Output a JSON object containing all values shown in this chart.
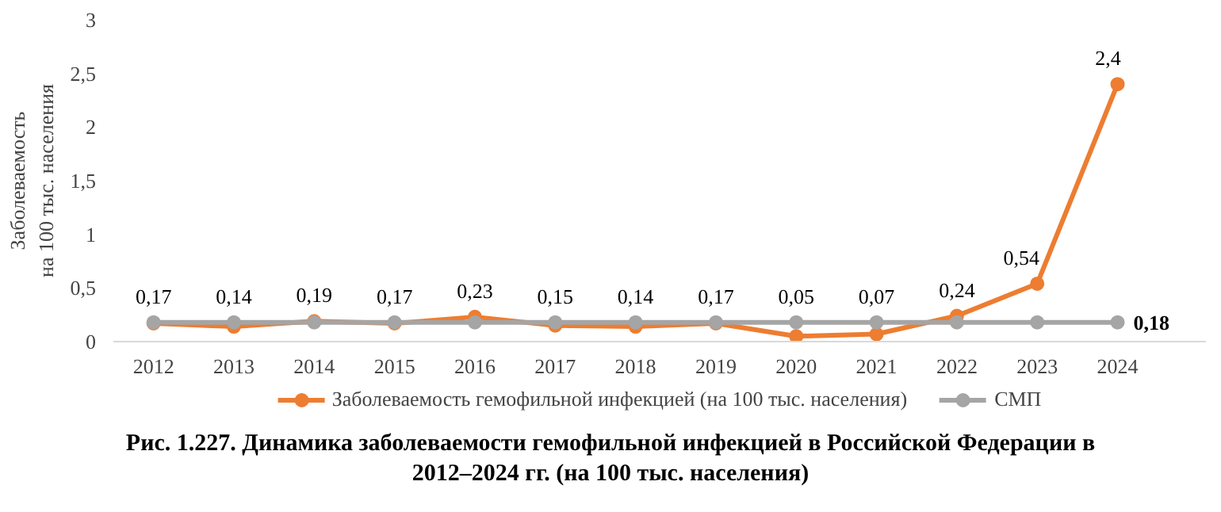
{
  "chart_data": {
    "type": "line",
    "ylabel": "Заболеваемость\nна 100 тыс. населения",
    "categories": [
      "2012",
      "2013",
      "2014",
      "2015",
      "2016",
      "2017",
      "2018",
      "2019",
      "2020",
      "2021",
      "2022",
      "2023",
      "2024"
    ],
    "series": [
      {
        "name": "Заболеваемость гемофильной инфекцией (на 100 тыс. населения)",
        "color": "#ed7d31",
        "values": [
          0.17,
          0.14,
          0.19,
          0.17,
          0.23,
          0.15,
          0.14,
          0.17,
          0.05,
          0.07,
          0.24,
          0.54,
          2.4
        ],
        "value_labels": [
          "0,17",
          "0,14",
          "0,19",
          "0,17",
          "0,23",
          "0,15",
          "0,14",
          "0,17",
          "0,05",
          "0,07",
          "0,24",
          "0,54",
          "2,4"
        ]
      },
      {
        "name": "СМП",
        "color": "#a5a5a5",
        "values": [
          0.18,
          0.18,
          0.18,
          0.18,
          0.18,
          0.18,
          0.18,
          0.18,
          0.18,
          0.18,
          0.18,
          0.18,
          0.18
        ],
        "value_labels": [
          null,
          null,
          null,
          null,
          null,
          null,
          null,
          null,
          null,
          null,
          null,
          null,
          "0,18"
        ]
      }
    ],
    "ylim": [
      0,
      3
    ],
    "yticks": [
      0,
      {
        "value": 0.5,
        "label": "0,5"
      },
      1,
      {
        "value": 1.5,
        "label": "1,5"
      },
      2,
      {
        "value": 2.5,
        "label": "2,5"
      },
      3
    ],
    "grid": false,
    "legend": "bottom",
    "marker": "circle",
    "line_style": "solid",
    "annotations": [
      "Рис. 1.227. Динамика заболеваемости гемофильной инфекцией в Российской Федерации в 2012–2024 гг. (на 100 тыс. населения)"
    ]
  }
}
